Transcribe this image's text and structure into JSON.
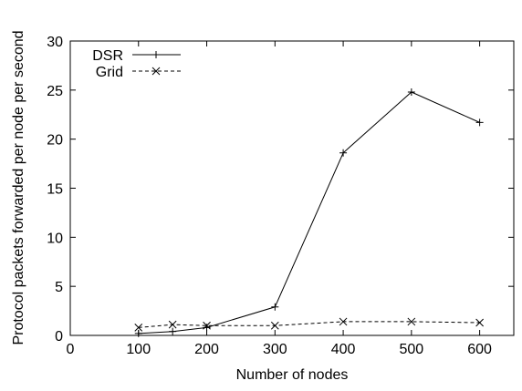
{
  "chart_data": {
    "type": "line",
    "xlabel": "Number of nodes",
    "ylabel": "Protocol packets forwarded per node per second",
    "xlim": [
      0,
      650
    ],
    "ylim": [
      0,
      30
    ],
    "xticks": [
      0,
      100,
      200,
      300,
      400,
      500,
      600
    ],
    "yticks": [
      0,
      5,
      10,
      15,
      20,
      25,
      30
    ],
    "grid": false,
    "legend_position": "top-left",
    "series": [
      {
        "name": "DSR",
        "marker": "plus",
        "line_style": "solid",
        "x": [
          100,
          150,
          200,
          300,
          400,
          500,
          600
        ],
        "y": [
          0.2,
          0.4,
          0.8,
          2.9,
          18.6,
          24.8,
          21.7
        ]
      },
      {
        "name": "Grid",
        "marker": "cross",
        "line_style": "dashed",
        "x": [
          100,
          150,
          200,
          300,
          400,
          500,
          600
        ],
        "y": [
          0.8,
          1.1,
          1.0,
          1.0,
          1.4,
          1.4,
          1.3
        ]
      }
    ]
  }
}
